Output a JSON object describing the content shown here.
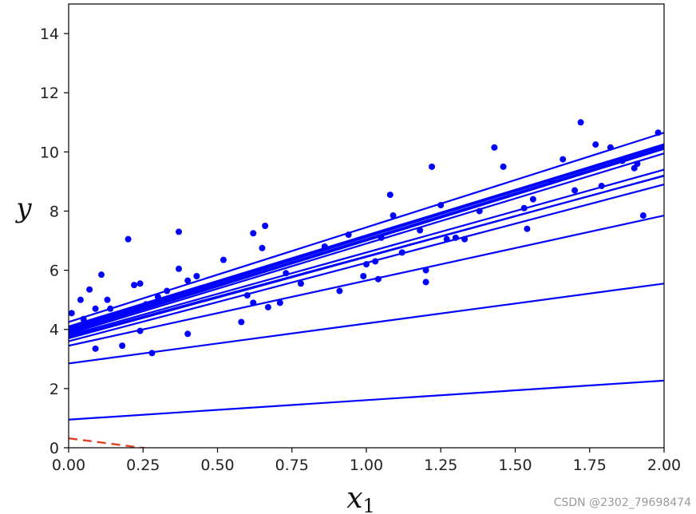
{
  "chart_data": {
    "type": "scatter",
    "title": "",
    "xlabel": "x",
    "xlabel_sub": "1",
    "ylabel": "y",
    "xlim": [
      0,
      2
    ],
    "ylim": [
      0,
      15
    ],
    "xticks": [
      "0.00",
      "0.25",
      "0.50",
      "0.75",
      "1.00",
      "1.25",
      "1.50",
      "1.75",
      "2.00"
    ],
    "yticks": [
      "0",
      "2",
      "4",
      "6",
      "8",
      "10",
      "12",
      "14"
    ],
    "grid": false,
    "point_color": "#0000ff",
    "line_color": "#0000ff",
    "dashed_color": "#e04020",
    "points": [
      [
        0.01,
        4.55
      ],
      [
        0.04,
        5.0
      ],
      [
        0.05,
        4.35
      ],
      [
        0.07,
        5.35
      ],
      [
        0.09,
        4.7
      ],
      [
        0.09,
        3.35
      ],
      [
        0.11,
        5.85
      ],
      [
        0.13,
        5.0
      ],
      [
        0.14,
        4.7
      ],
      [
        0.18,
        3.45
      ],
      [
        0.2,
        7.05
      ],
      [
        0.22,
        5.5
      ],
      [
        0.24,
        5.55
      ],
      [
        0.24,
        3.95
      ],
      [
        0.26,
        4.85
      ],
      [
        0.28,
        3.2
      ],
      [
        0.3,
        5.1
      ],
      [
        0.33,
        5.3
      ],
      [
        0.37,
        6.05
      ],
      [
        0.37,
        7.3
      ],
      [
        0.4,
        5.65
      ],
      [
        0.4,
        3.85
      ],
      [
        0.43,
        5.8
      ],
      [
        0.52,
        6.35
      ],
      [
        0.58,
        4.25
      ],
      [
        0.6,
        5.15
      ],
      [
        0.62,
        7.25
      ],
      [
        0.62,
        4.9
      ],
      [
        0.65,
        6.75
      ],
      [
        0.66,
        7.5
      ],
      [
        0.67,
        4.75
      ],
      [
        0.71,
        4.9
      ],
      [
        0.73,
        5.9
      ],
      [
        0.78,
        5.55
      ],
      [
        0.86,
        6.8
      ],
      [
        0.91,
        5.3
      ],
      [
        0.94,
        7.2
      ],
      [
        0.99,
        5.8
      ],
      [
        1.0,
        6.2
      ],
      [
        1.03,
        6.3
      ],
      [
        1.04,
        5.7
      ],
      [
        1.05,
        7.1
      ],
      [
        1.08,
        8.55
      ],
      [
        1.09,
        7.85
      ],
      [
        1.12,
        6.6
      ],
      [
        1.18,
        7.35
      ],
      [
        1.2,
        6.0
      ],
      [
        1.2,
        5.6
      ],
      [
        1.22,
        9.5
      ],
      [
        1.25,
        8.2
      ],
      [
        1.27,
        7.05
      ],
      [
        1.3,
        7.1
      ],
      [
        1.33,
        7.05
      ],
      [
        1.38,
        8.0
      ],
      [
        1.43,
        10.15
      ],
      [
        1.46,
        9.5
      ],
      [
        1.53,
        8.1
      ],
      [
        1.54,
        7.4
      ],
      [
        1.56,
        8.4
      ],
      [
        1.62,
        9.0
      ],
      [
        1.66,
        9.75
      ],
      [
        1.7,
        8.7
      ],
      [
        1.72,
        11.0
      ],
      [
        1.77,
        10.25
      ],
      [
        1.79,
        8.85
      ],
      [
        1.82,
        10.15
      ],
      [
        1.86,
        9.7
      ],
      [
        1.9,
        9.45
      ],
      [
        1.91,
        9.6
      ],
      [
        1.93,
        7.85
      ],
      [
        1.98,
        10.65
      ]
    ],
    "lines": [
      [
        0.95,
        0.66
      ],
      [
        2.85,
        1.35
      ],
      [
        3.45,
        2.2
      ],
      [
        3.6,
        2.65
      ],
      [
        3.7,
        2.75
      ],
      [
        3.75,
        2.72
      ],
      [
        3.8,
        2.8
      ],
      [
        3.85,
        3.05
      ],
      [
        3.9,
        3.1
      ],
      [
        3.95,
        3.1
      ],
      [
        4.0,
        3.12
      ],
      [
        4.05,
        3.08
      ],
      [
        4.1,
        3.08
      ],
      [
        4.25,
        3.2
      ]
    ],
    "dashed_line": [
      0.32,
      -1.3
    ]
  },
  "watermark": "CSDN @2302_79698474"
}
